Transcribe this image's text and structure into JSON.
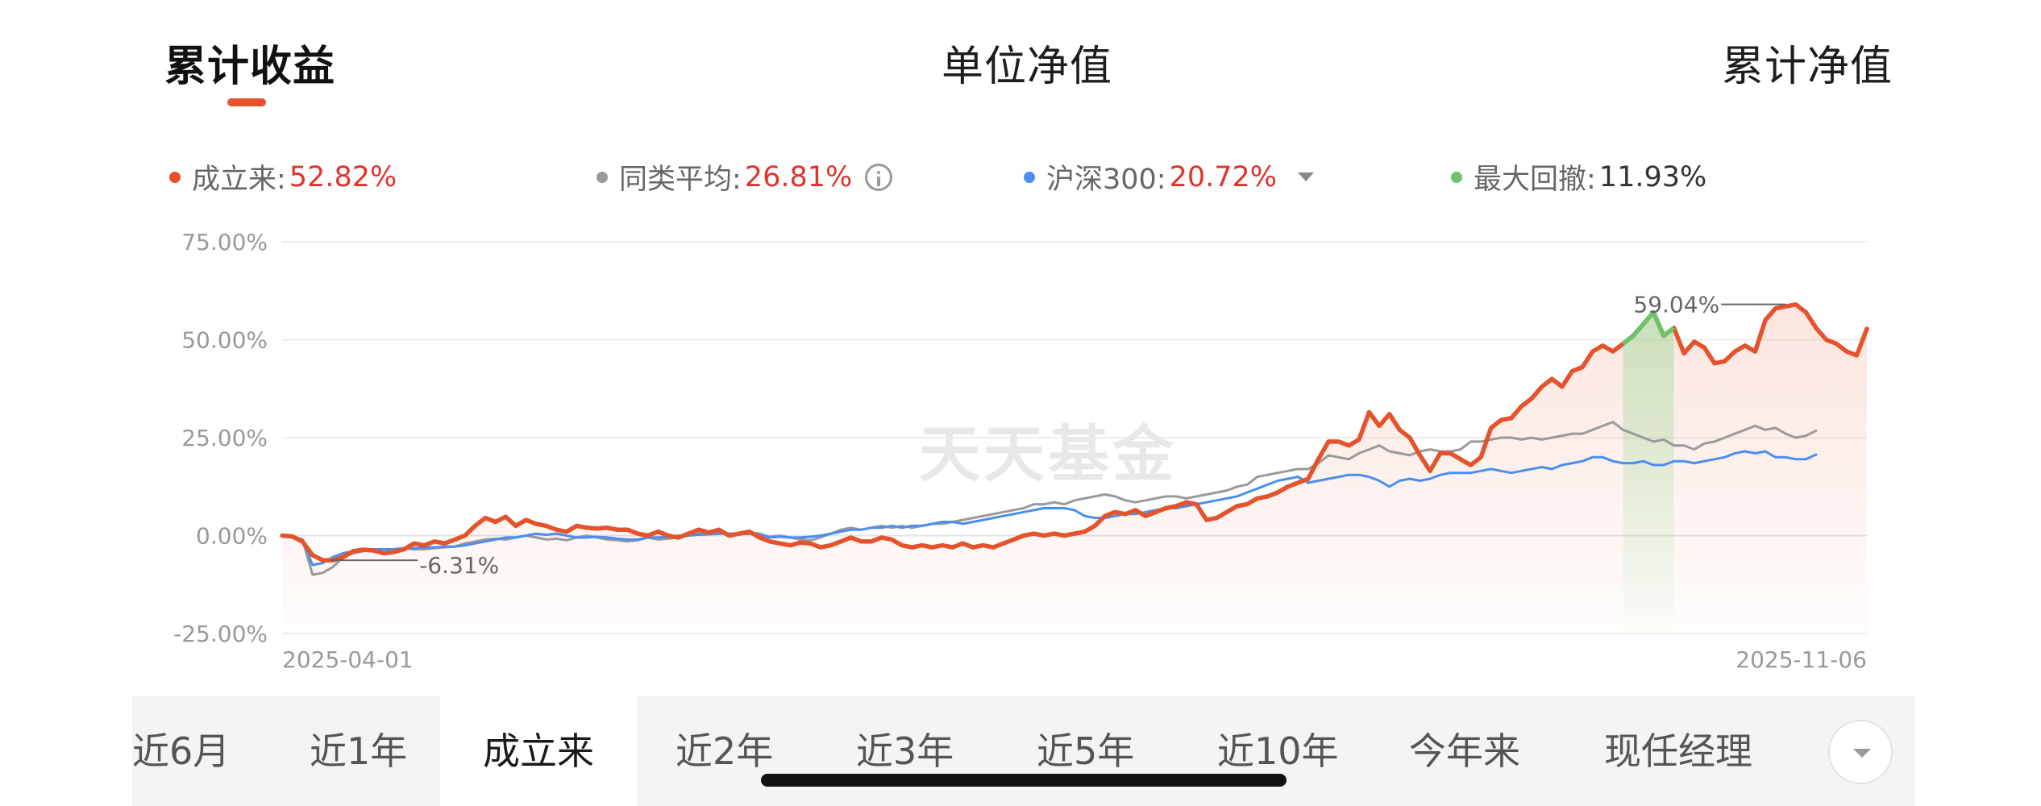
{
  "top_tabs": {
    "cumulative_return": "累计收益",
    "unit_nav": "单位净值",
    "cumulative_nav": "累计净值"
  },
  "legend": {
    "established": {
      "label": "成立来:",
      "value": "52.82%",
      "color": "#e5532d"
    },
    "peer_average": {
      "label": "同类平均:",
      "value": "26.81%",
      "color": "#9a9a9a"
    },
    "hs300": {
      "label": "沪深300:",
      "value": "20.72%",
      "color": "#4a8ef0"
    },
    "max_drawdown": {
      "label": "最大回撤:",
      "value": "11.93%",
      "color": "#6cc36a"
    }
  },
  "watermark": "天天基金",
  "chart_data": {
    "type": "line",
    "ylim": [
      -25,
      75
    ],
    "yticks": [
      75,
      50,
      25,
      0,
      -25
    ],
    "ytick_labels": [
      "75.00%",
      "50.00%",
      "25.00%",
      "0.00%",
      "-25.00%"
    ],
    "x_start_label": "2025-04-01",
    "x_end_label": "2025-11-06",
    "grid": true,
    "legend_position": "top",
    "annotations": {
      "min": {
        "label": "-6.31%",
        "value": -6.31,
        "index": 7
      },
      "max": {
        "label": "59.04%",
        "value": 59.04,
        "index": 148
      }
    },
    "max_drawdown_range": {
      "start": 132,
      "end": 137
    },
    "series": [
      {
        "name": "成立来",
        "color": "#e5532d",
        "values": [
          0,
          -0.2,
          -1.5,
          -5,
          -6.3,
          -6.3,
          -5.5,
          -4,
          -3.6,
          -3.8,
          -4.5,
          -4.2,
          -3.5,
          -2,
          -2.5,
          -1.5,
          -2,
          -1,
          0,
          2.5,
          4.5,
          3.5,
          4.8,
          2.5,
          4,
          3,
          2.5,
          1.5,
          1,
          2.5,
          2,
          1.8,
          2,
          1.5,
          1.5,
          0.5,
          0,
          1,
          0,
          -0.5,
          0.5,
          1.5,
          0.8,
          1.5,
          0,
          0.5,
          1,
          -0.5,
          -1.5,
          -2,
          -2.5,
          -1.8,
          -2,
          -3,
          -2.5,
          -1.5,
          -0.5,
          -1.5,
          -1.5,
          -0.5,
          -1,
          -2.5,
          -3,
          -2.5,
          -3,
          -2.5,
          -3,
          -2,
          -3,
          -2.5,
          -3,
          -2,
          -1,
          0,
          0.5,
          0,
          0.5,
          0,
          0.5,
          1,
          2.5,
          5,
          6,
          5.5,
          6.5,
          5,
          6,
          7,
          7.5,
          8.5,
          8,
          4,
          4.5,
          6,
          7.5,
          8,
          9.5,
          10,
          11,
          12.5,
          13.5,
          14.5,
          19.5,
          24,
          24,
          23,
          24.5,
          31.5,
          28,
          31,
          27,
          25,
          20.5,
          16.5,
          21,
          21,
          19.5,
          18,
          20,
          27.5,
          29.5,
          30,
          33,
          35,
          38,
          40,
          38,
          42,
          43,
          47,
          48.5,
          47,
          49,
          51,
          54,
          57,
          51,
          53,
          46.5,
          49.5,
          48,
          44,
          44.5,
          47,
          48.5,
          47,
          55,
          58,
          58.5,
          59,
          57,
          53,
          50,
          49,
          47,
          46,
          52.8
        ]
      },
      {
        "name": "同类平均",
        "color": "#9a9a9a",
        "values": [
          0,
          -0.2,
          -1,
          -10,
          -9.5,
          -8,
          -5.5,
          -4.5,
          -4,
          -3.8,
          -3.5,
          -3.5,
          -3.2,
          -3.5,
          -3.5,
          -3.2,
          -3,
          -2.8,
          -2,
          -1.5,
          -1,
          -0.8,
          -1,
          -0.5,
          0,
          -0.5,
          -1,
          -0.8,
          -1.2,
          -0.5,
          0,
          -0.5,
          -1,
          -1.2,
          -1.5,
          -1.2,
          -0.5,
          -1,
          -0.8,
          -0.5,
          0,
          0.5,
          0.3,
          0.5,
          0.5,
          0.5,
          0.8,
          0.5,
          -0.3,
          0,
          -0.5,
          -1,
          -1.2,
          -0.5,
          0.5,
          1.5,
          2,
          1.5,
          2,
          2.5,
          2,
          2.5,
          2,
          2.5,
          3,
          3,
          3.5,
          4,
          4.5,
          5,
          5.5,
          6,
          6.5,
          7,
          8,
          8,
          8.5,
          8,
          9,
          9.5,
          10,
          10.5,
          10,
          9,
          8.5,
          9,
          9.5,
          10,
          10,
          9.5,
          10,
          10.5,
          11,
          11.5,
          12.5,
          13,
          15,
          15.5,
          16,
          16.5,
          17,
          17,
          18.5,
          20.5,
          20,
          19.5,
          21,
          22,
          23,
          21.5,
          21,
          20.5,
          21.5,
          22,
          21.5,
          21.5,
          22,
          24,
          24,
          24.5,
          25,
          25,
          24.5,
          25,
          24.5,
          25,
          25.5,
          26,
          26,
          27,
          28,
          29,
          27,
          26,
          25,
          24,
          24.5,
          23,
          23,
          22,
          23.5,
          24,
          25,
          26,
          27,
          28,
          27,
          27.5,
          26,
          25,
          25.5,
          26.8
        ]
      },
      {
        "name": "沪深300",
        "color": "#4a8ef0",
        "values": [
          0,
          -0.2,
          -1,
          -7.5,
          -7,
          -5.5,
          -4.5,
          -4,
          -3.8,
          -3.5,
          -3.5,
          -3.5,
          -3.2,
          -3.2,
          -3,
          -3,
          -2.8,
          -2.8,
          -2.5,
          -2,
          -1.5,
          -1,
          -0.5,
          -0.5,
          0,
          0.5,
          0.2,
          0.5,
          0,
          -0.5,
          -0.5,
          -0.3,
          -0.5,
          -0.8,
          -1,
          -1,
          -0.5,
          -0.5,
          -0.3,
          0,
          0,
          0.2,
          0.3,
          0.5,
          0.5,
          0.3,
          0.5,
          0.2,
          -0.5,
          -0.3,
          -0.5,
          -0.5,
          -0.3,
          0,
          0.5,
          1,
          1.5,
          1.5,
          2,
          2,
          2.5,
          2,
          2.5,
          2.5,
          3,
          3.5,
          3.5,
          3,
          3.5,
          4,
          4.5,
          5,
          5.5,
          6,
          6.5,
          7,
          7,
          7,
          6.5,
          5,
          4.5,
          4.5,
          5,
          5.5,
          5.5,
          6,
          6.5,
          7,
          7,
          7.5,
          8,
          8.5,
          9,
          9.5,
          10,
          11,
          12,
          13,
          14,
          14.5,
          15,
          13.5,
          14,
          14.5,
          15,
          15.5,
          15.5,
          15,
          14,
          12.5,
          14,
          14.5,
          14,
          14.5,
          15.5,
          16,
          16,
          16,
          16.5,
          17,
          16.5,
          16,
          16.5,
          17,
          17.5,
          17,
          18,
          18.5,
          19,
          20,
          20,
          19,
          18.5,
          18.5,
          19,
          18,
          18,
          19,
          19,
          18.5,
          19,
          19.5,
          20,
          21,
          21.5,
          21,
          21.5,
          20,
          20,
          19.5,
          19.5,
          20.7
        ]
      }
    ]
  },
  "periods": {
    "labels": [
      "近6月",
      "近1年",
      "成立来",
      "近2年",
      "近3年",
      "近5年",
      "近10年",
      "今年来",
      "现任经理"
    ],
    "active_index": 2
  }
}
